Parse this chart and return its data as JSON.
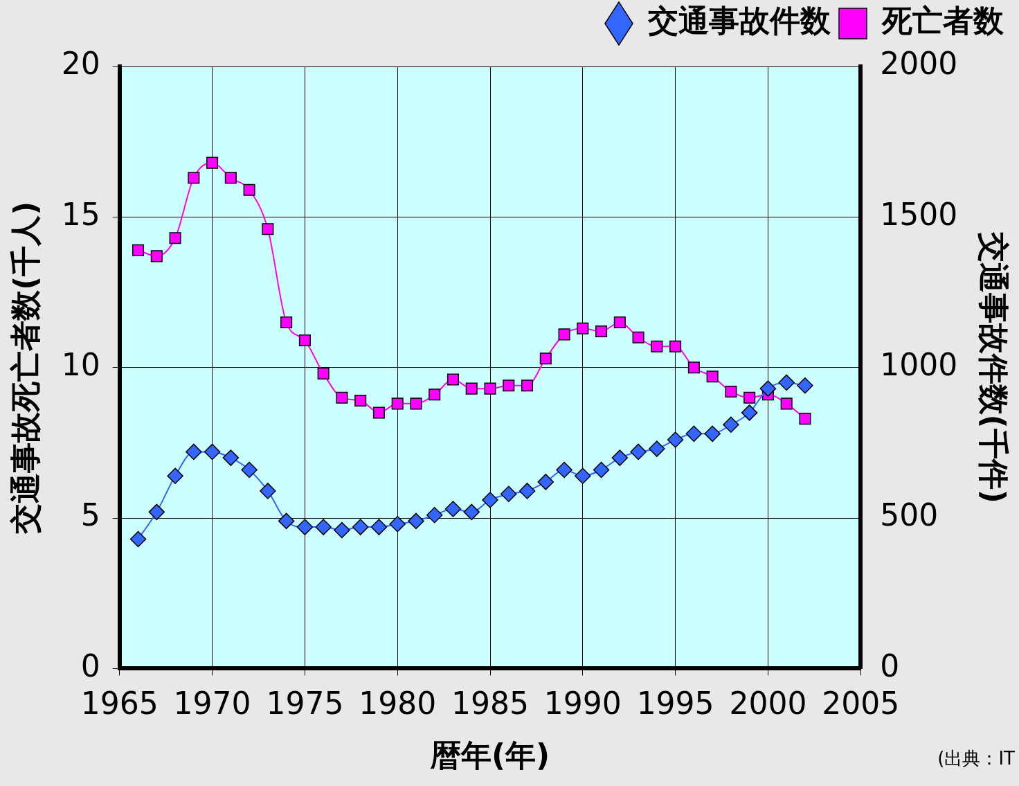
{
  "chart_data": {
    "type": "line",
    "xlabel": "暦年(年)",
    "ylabel": "交通事故死亡者数(千人)",
    "y2label": "交通事故件数(千件)",
    "x": [
      1966,
      1967,
      1968,
      1969,
      1970,
      1971,
      1972,
      1973,
      1974,
      1975,
      1976,
      1977,
      1978,
      1979,
      1980,
      1981,
      1982,
      1983,
      1984,
      1985,
      1986,
      1987,
      1988,
      1989,
      1990,
      1991,
      1992,
      1993,
      1994,
      1995,
      1996,
      1997,
      1998,
      1999,
      2000,
      2001,
      2002
    ],
    "series": [
      {
        "name": "死亡者数",
        "color": "#ff00ff",
        "marker": "square",
        "values": [
          13.9,
          13.7,
          14.3,
          16.3,
          16.8,
          16.3,
          15.9,
          14.6,
          11.5,
          10.9,
          9.8,
          9.0,
          8.9,
          8.5,
          8.8,
          8.8,
          9.1,
          9.6,
          9.3,
          9.3,
          9.4,
          9.4,
          10.3,
          11.1,
          11.3,
          11.2,
          11.5,
          11.0,
          10.7,
          10.7,
          10.0,
          9.7,
          9.2,
          9.0,
          9.1,
          8.8,
          8.3
        ]
      },
      {
        "name": "交通事故件数",
        "color": "#3366ff",
        "marker": "diamond",
        "axis": "y2",
        "values": [
          430,
          520,
          640,
          720,
          720,
          700,
          660,
          590,
          490,
          470,
          470,
          460,
          470,
          470,
          480,
          490,
          510,
          530,
          520,
          560,
          580,
          590,
          620,
          660,
          640,
          660,
          700,
          720,
          730,
          760,
          780,
          780,
          810,
          850,
          930,
          950,
          940
        ]
      }
    ],
    "xlim": [
      1965,
      2005
    ],
    "xticks": [
      1965,
      1970,
      1975,
      1980,
      1985,
      1990,
      1995,
      2000,
      2005
    ],
    "ylim": [
      0,
      20
    ],
    "yticks": [
      0,
      5,
      10,
      15,
      20
    ],
    "y2lim": [
      0,
      2000
    ],
    "y2ticks": [
      0,
      500,
      1000,
      1500,
      2000
    ],
    "grid": true,
    "legend": "top",
    "annotations": [
      "(出典：IT"
    ]
  }
}
